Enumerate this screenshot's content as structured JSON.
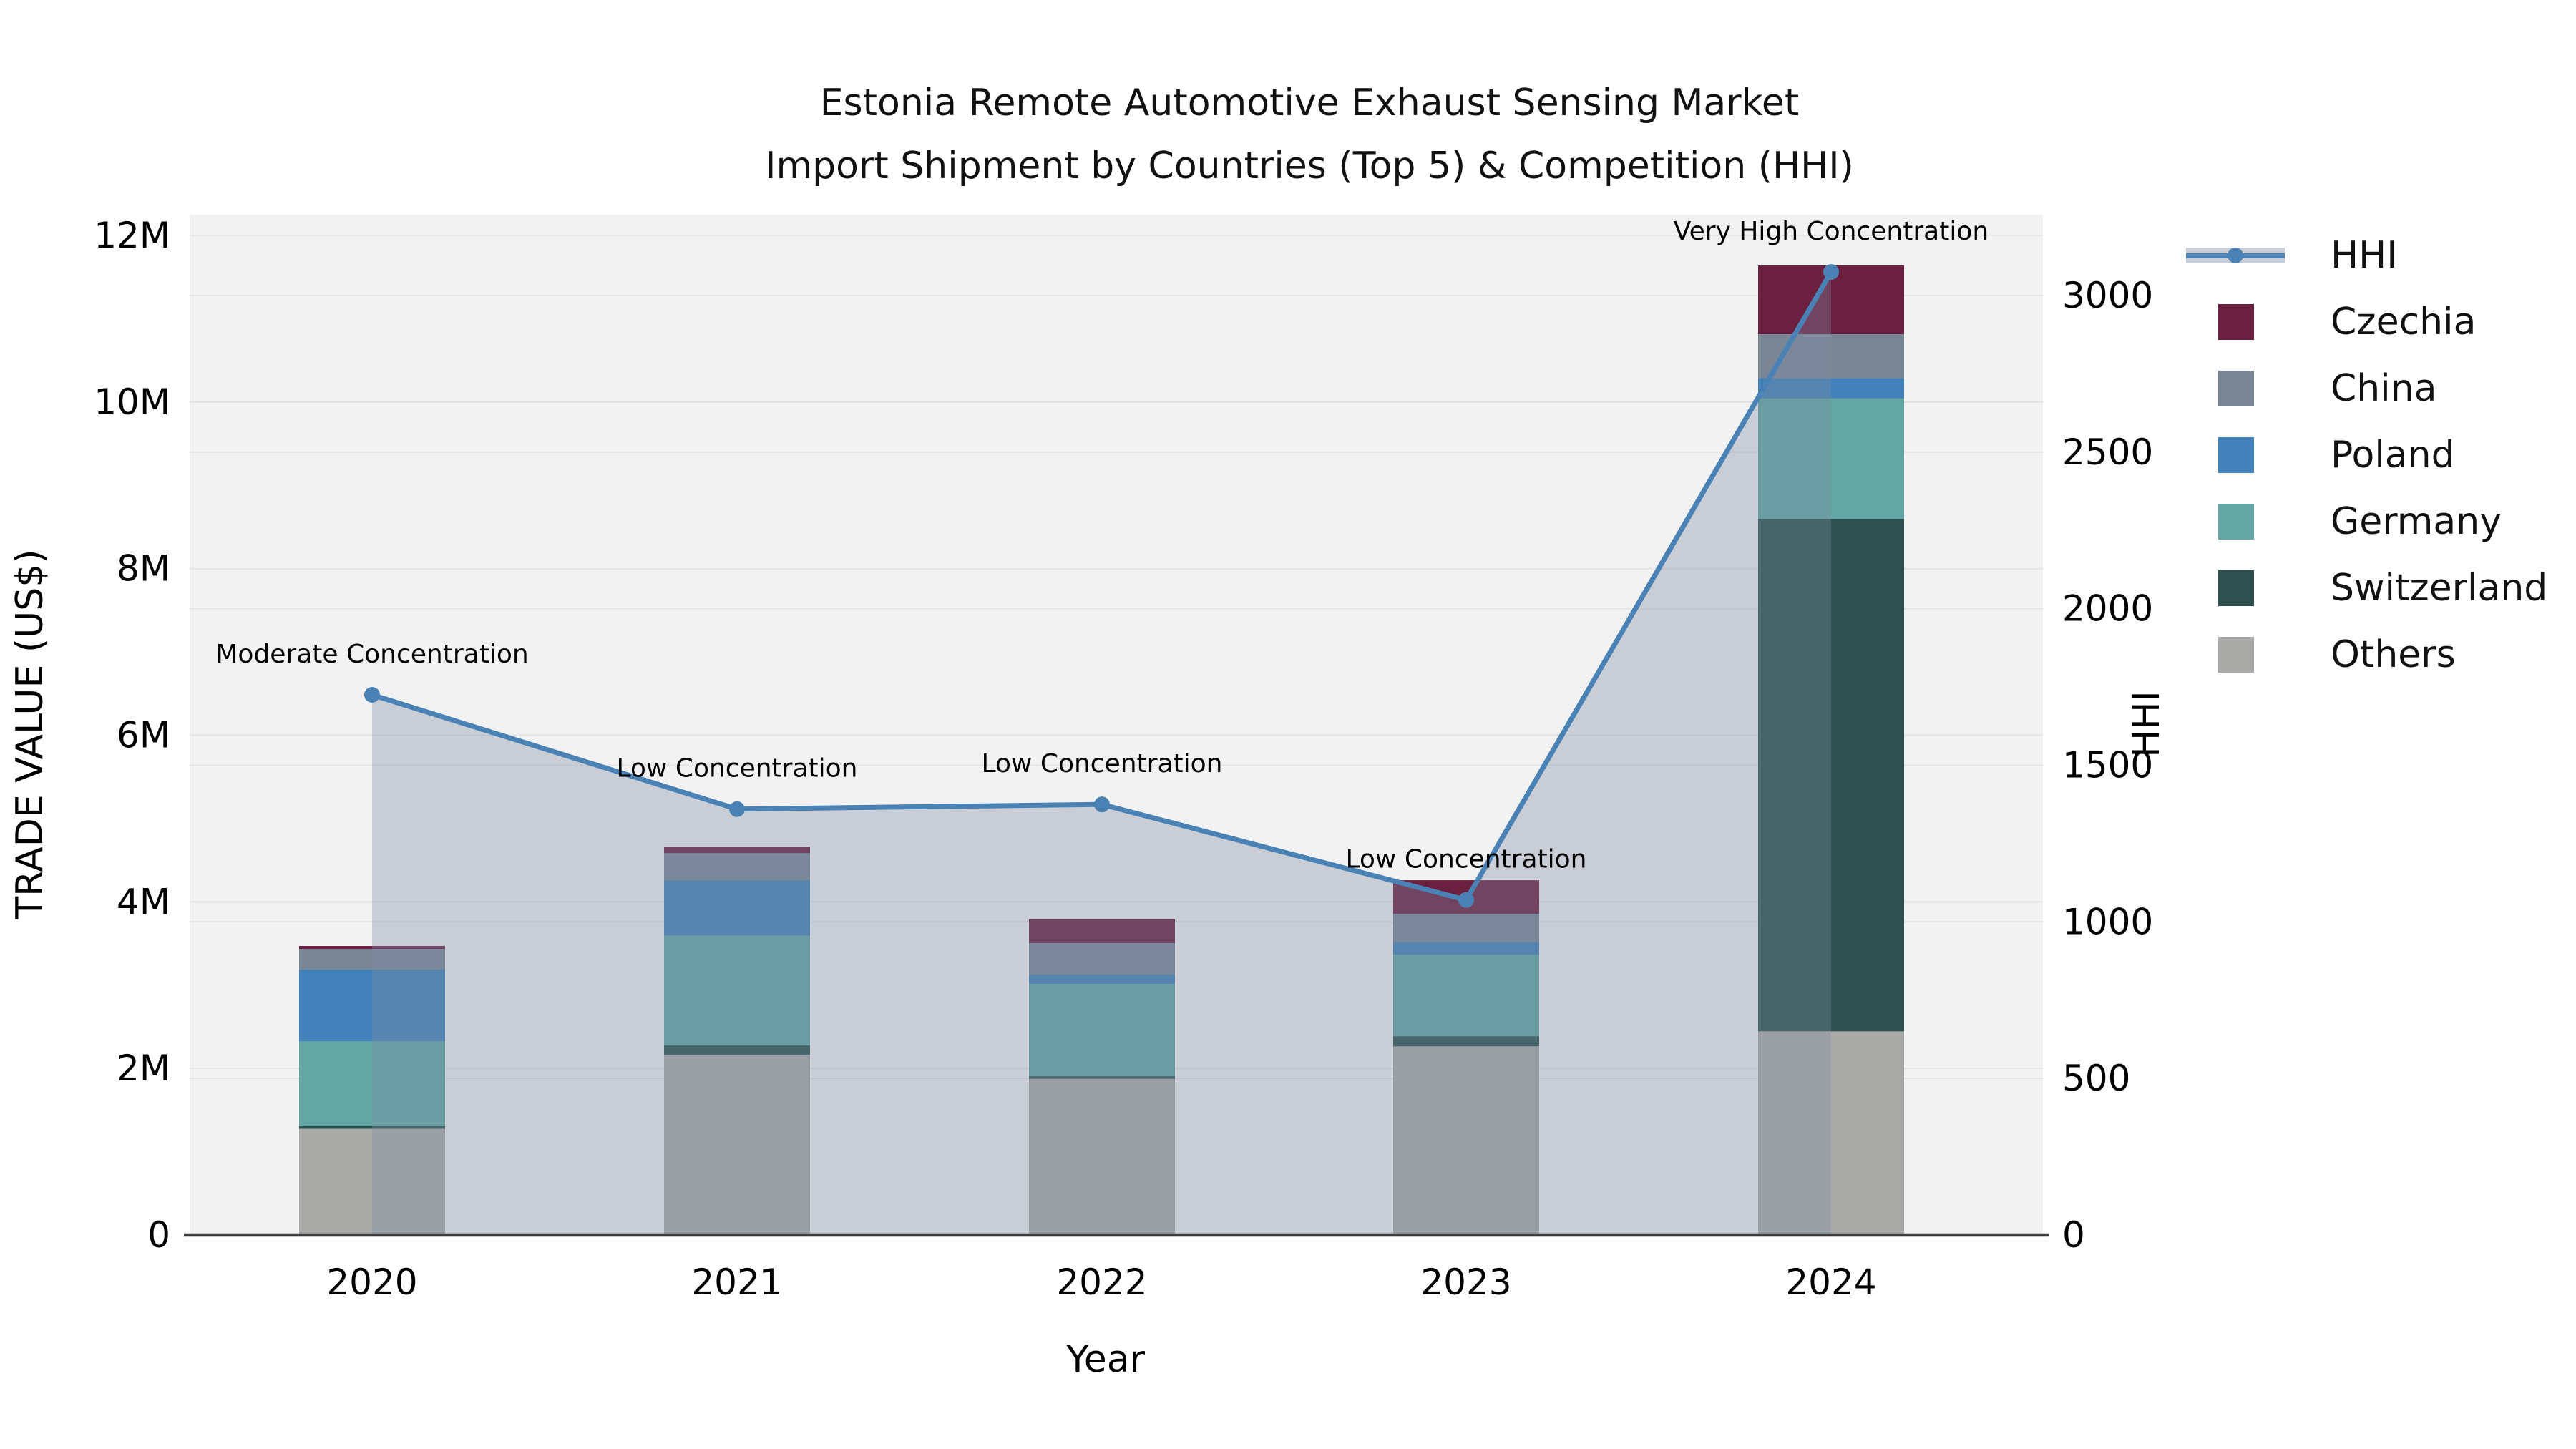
{
  "title": {
    "line1": "Estonia Remote Automotive Exhaust Sensing Market",
    "line2": "Import Shipment by Countries (Top 5) & Competition (HHI)"
  },
  "axes": {
    "y_left_label": "TRADE VALUE (US$)",
    "y_right_label": "HHI",
    "x_label": "Year",
    "y_left_ticks": [
      "0",
      "2M",
      "4M",
      "6M",
      "8M",
      "10M",
      "12M"
    ],
    "y_left_tick_values_M": [
      0,
      2,
      4,
      6,
      8,
      10,
      12
    ],
    "y_right_ticks": [
      "0",
      "500",
      "1000",
      "1500",
      "2000",
      "2500",
      "3000"
    ],
    "y_right_tick_values": [
      0,
      500,
      1000,
      1500,
      2000,
      2500,
      3000
    ]
  },
  "legend": {
    "items": [
      {
        "label": "HHI",
        "kind": "line",
        "color": "#4a82b5",
        "band_color": "#c9ced6"
      },
      {
        "label": "Czechia",
        "kind": "swatch",
        "color": "#6b2040"
      },
      {
        "label": "China",
        "kind": "swatch",
        "color": "#788695"
      },
      {
        "label": "Poland",
        "kind": "swatch",
        "color": "#4281ba"
      },
      {
        "label": "Germany",
        "kind": "swatch",
        "color": "#63a6a3"
      },
      {
        "label": "Switzerland",
        "kind": "swatch",
        "color": "#2d504f"
      },
      {
        "label": "Others",
        "kind": "swatch",
        "color": "#a9a9a7"
      }
    ]
  },
  "chart_data": {
    "type": "bar",
    "subtype": "stacked-bars-with-line-overlay",
    "title": "Estonia Remote Automotive Exhaust Sensing Market — Import Shipment by Countries (Top 5) & Competition (HHI)",
    "categories": [
      "2020",
      "2021",
      "2022",
      "2023",
      "2024"
    ],
    "values_unit": "USD millions",
    "series": [
      {
        "name": "Others",
        "color": "#a9a9a7",
        "values": [
          1.28,
          2.17,
          1.88,
          2.27,
          2.45
        ]
      },
      {
        "name": "Switzerland",
        "color": "#2d504f",
        "values": [
          0.03,
          0.11,
          0.03,
          0.12,
          6.15
        ]
      },
      {
        "name": "Germany",
        "color": "#63a6a3",
        "values": [
          1.02,
          1.32,
          1.11,
          0.98,
          1.45
        ]
      },
      {
        "name": "Poland",
        "color": "#4281ba",
        "values": [
          0.86,
          0.66,
          0.11,
          0.15,
          0.24
        ]
      },
      {
        "name": "China",
        "color": "#788695",
        "values": [
          0.25,
          0.33,
          0.38,
          0.34,
          0.53
        ]
      },
      {
        "name": "Czechia",
        "color": "#6b2040",
        "values": [
          0.03,
          0.07,
          0.28,
          0.4,
          0.82
        ]
      }
    ],
    "totals_M": [
      3.47,
      4.66,
      3.79,
      4.26,
      11.64
    ],
    "line_series": {
      "name": "HHI",
      "values": [
        1725,
        1360,
        1375,
        1070,
        3075
      ],
      "color": "#4a82b5",
      "marker": "circle",
      "area_fill": "rgba(125,140,162,0.35)"
    },
    "annotations": [
      {
        "category": "2020",
        "text": "Moderate Concentration"
      },
      {
        "category": "2021",
        "text": "Low Concentration"
      },
      {
        "category": "2022",
        "text": "Low Concentration"
      },
      {
        "category": "2023",
        "text": "Low Concentration"
      },
      {
        "category": "2024",
        "text": "Very High Concentration"
      }
    ],
    "xlabel": "Year",
    "ylabel_left": "TRADE VALUE (US$)",
    "ylabel_right": "HHI",
    "ylim_left_M": [
      0,
      12.25
    ],
    "ylim_right": [
      0,
      3258
    ],
    "grid": true,
    "legend_position": "right-outside",
    "plot_bg": "#f2f2f2",
    "grid_color": "#e3e3e3",
    "axis_line_color": "#3d3d3d"
  }
}
